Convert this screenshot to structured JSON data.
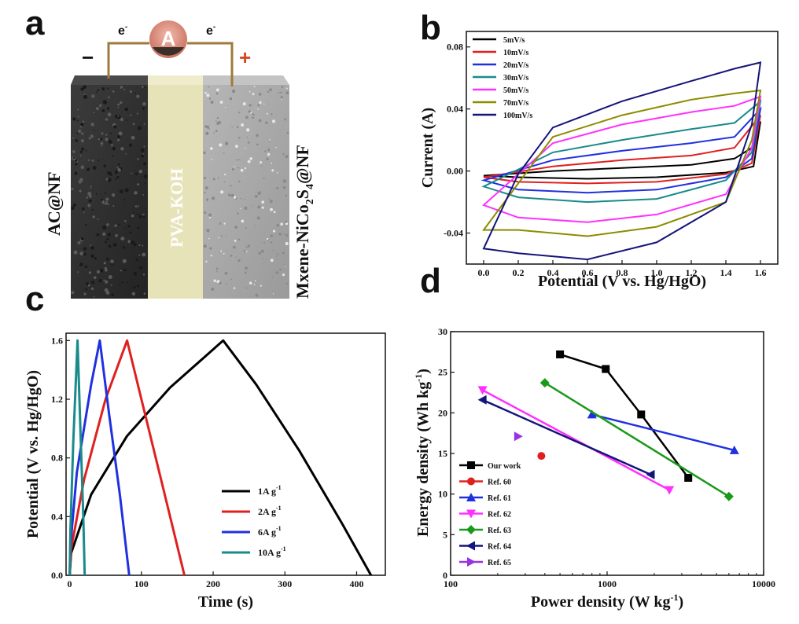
{
  "figure": {
    "panel_labels": [
      "a",
      "b",
      "c",
      "d"
    ]
  },
  "schematic": {
    "ammeter_symbol": "A",
    "electron_left": "e",
    "electron_right": "e",
    "minus_sign": "−",
    "plus_sign": "+",
    "left_electrode": "AC@NF",
    "middle_layer": "PVA-KOH",
    "right_electrode": "Mxene-NiCo",
    "right_electrode_sub": [
      "2",
      "4"
    ],
    "right_electrode_S": "S",
    "right_electrode_tail": "@NF",
    "colors": {
      "left": "#2e2e2e",
      "middle": "#e7e3b9",
      "right": "#a8a8a8",
      "wire": "#a07a3c",
      "meter": "#d98a7c"
    }
  },
  "chart_data": [
    {
      "id": "b",
      "type": "line",
      "xlabel": "Potential (V vs. Hg/HgO)",
      "ylabel": "Current (A)",
      "xlim": [
        -0.1,
        1.7
      ],
      "ylim": [
        -0.06,
        0.09
      ],
      "xticks": [
        "0.0",
        "0.2",
        "0.4",
        "0.6",
        "0.8",
        "1.0",
        "1.2",
        "1.4",
        "1.6"
      ],
      "yticks": [
        "-0.04",
        "0.00",
        "0.04",
        "0.08"
      ],
      "legend_position": "top-left",
      "series": [
        {
          "name": "5mV/s",
          "color": "#000000",
          "upper": [
            [
              0,
              -0.003
            ],
            [
              0.4,
              0.0
            ],
            [
              0.8,
              0.002
            ],
            [
              1.2,
              0.004
            ],
            [
              1.45,
              0.008
            ],
            [
              1.55,
              0.015
            ],
            [
              1.6,
              0.032
            ]
          ],
          "lower": [
            [
              1.6,
              0.032
            ],
            [
              1.56,
              0.003
            ],
            [
              1.4,
              -0.001
            ],
            [
              1.0,
              -0.004
            ],
            [
              0.6,
              -0.005
            ],
            [
              0.2,
              -0.004
            ],
            [
              0,
              -0.003
            ]
          ]
        },
        {
          "name": "10mV/s",
          "color": "#e02020",
          "upper": [
            [
              0,
              -0.004
            ],
            [
              0.4,
              0.003
            ],
            [
              0.8,
              0.007
            ],
            [
              1.2,
              0.01
            ],
            [
              1.45,
              0.015
            ],
            [
              1.6,
              0.036
            ]
          ],
          "lower": [
            [
              1.6,
              0.036
            ],
            [
              1.55,
              0.005
            ],
            [
              1.4,
              -0.002
            ],
            [
              1.0,
              -0.007
            ],
            [
              0.6,
              -0.008
            ],
            [
              0.2,
              -0.007
            ],
            [
              0,
              -0.004
            ]
          ]
        },
        {
          "name": "20mV/s",
          "color": "#2030e0",
          "upper": [
            [
              0,
              -0.006
            ],
            [
              0.4,
              0.007
            ],
            [
              0.8,
              0.013
            ],
            [
              1.2,
              0.018
            ],
            [
              1.45,
              0.022
            ],
            [
              1.6,
              0.04
            ]
          ],
          "lower": [
            [
              1.6,
              0.04
            ],
            [
              1.55,
              0.008
            ],
            [
              1.4,
              -0.004
            ],
            [
              1.0,
              -0.012
            ],
            [
              0.6,
              -0.014
            ],
            [
              0.2,
              -0.012
            ],
            [
              0,
              -0.006
            ]
          ]
        },
        {
          "name": "30mV/s",
          "color": "#1a8a8a",
          "upper": [
            [
              0,
              -0.01
            ],
            [
              0.4,
              0.012
            ],
            [
              0.8,
              0.02
            ],
            [
              1.2,
              0.027
            ],
            [
              1.45,
              0.031
            ],
            [
              1.6,
              0.045
            ]
          ],
          "lower": [
            [
              1.6,
              0.045
            ],
            [
              1.55,
              0.012
            ],
            [
              1.4,
              -0.006
            ],
            [
              1.0,
              -0.018
            ],
            [
              0.6,
              -0.02
            ],
            [
              0.2,
              -0.017
            ],
            [
              0,
              -0.01
            ]
          ]
        },
        {
          "name": "50mV/s",
          "color": "#ff30ff",
          "upper": [
            [
              0,
              -0.022
            ],
            [
              0.4,
              0.018
            ],
            [
              0.8,
              0.03
            ],
            [
              1.2,
              0.038
            ],
            [
              1.45,
              0.042
            ],
            [
              1.6,
              0.048
            ]
          ],
          "lower": [
            [
              1.6,
              0.048
            ],
            [
              1.55,
              0.015
            ],
            [
              1.4,
              -0.015
            ],
            [
              1.0,
              -0.028
            ],
            [
              0.6,
              -0.033
            ],
            [
              0.2,
              -0.03
            ],
            [
              0,
              -0.022
            ]
          ]
        },
        {
          "name": "70mV/s",
          "color": "#8c8c00",
          "upper": [
            [
              0,
              -0.038
            ],
            [
              0.4,
              0.022
            ],
            [
              0.8,
              0.036
            ],
            [
              1.2,
              0.046
            ],
            [
              1.45,
              0.05
            ],
            [
              1.6,
              0.052
            ]
          ],
          "lower": [
            [
              1.6,
              0.052
            ],
            [
              1.55,
              0.02
            ],
            [
              1.4,
              -0.02
            ],
            [
              1.0,
              -0.036
            ],
            [
              0.6,
              -0.042
            ],
            [
              0.2,
              -0.038
            ],
            [
              0,
              -0.038
            ]
          ]
        },
        {
          "name": "100mV/s",
          "color": "#14147a",
          "upper": [
            [
              0,
              -0.05
            ],
            [
              0.2,
              -0.002
            ],
            [
              0.4,
              0.028
            ],
            [
              0.8,
              0.045
            ],
            [
              1.2,
              0.058
            ],
            [
              1.45,
              0.066
            ],
            [
              1.6,
              0.07
            ]
          ],
          "lower": [
            [
              1.6,
              0.07
            ],
            [
              1.55,
              0.03
            ],
            [
              1.4,
              -0.02
            ],
            [
              1.0,
              -0.046
            ],
            [
              0.6,
              -0.057
            ],
            [
              0.2,
              -0.053
            ],
            [
              0,
              -0.05
            ]
          ]
        }
      ]
    },
    {
      "id": "c",
      "type": "line",
      "xlabel": "Time (s)",
      "ylabel": "Potential (V vs. Hg/HgO)",
      "xlim": [
        -5,
        440
      ],
      "ylim": [
        0,
        1.65
      ],
      "xticks": [
        "0",
        "100",
        "200",
        "300",
        "400"
      ],
      "yticks": [
        "0.0",
        "0.4",
        "0.8",
        "1.2",
        "1.6"
      ],
      "legend_position": "lower-right",
      "series": [
        {
          "name": "1A g",
          "color": "#000000",
          "points": [
            [
              0,
              0
            ],
            [
              2,
              0.15
            ],
            [
              30,
              0.55
            ],
            [
              80,
              0.95
            ],
            [
              140,
              1.28
            ],
            [
              214,
              1.6
            ],
            [
              260,
              1.3
            ],
            [
              320,
              0.85
            ],
            [
              380,
              0.35
            ],
            [
              420,
              0
            ]
          ]
        },
        {
          "name": "2A g",
          "color": "#e02020",
          "points": [
            [
              0,
              0
            ],
            [
              2,
              0.18
            ],
            [
              20,
              0.65
            ],
            [
              50,
              1.2
            ],
            [
              80,
              1.6
            ],
            [
              100,
              1.2
            ],
            [
              130,
              0.6
            ],
            [
              160,
              0
            ]
          ]
        },
        {
          "name": "6A g",
          "color": "#2030e0",
          "points": [
            [
              0,
              0
            ],
            [
              1,
              0.2
            ],
            [
              10,
              0.7
            ],
            [
              30,
              1.3
            ],
            [
              42,
              1.6
            ],
            [
              55,
              1.1
            ],
            [
              70,
              0.55
            ],
            [
              83,
              0
            ]
          ]
        },
        {
          "name": "10A g",
          "color": "#1a8a8a",
          "points": [
            [
              0,
              0
            ],
            [
              1,
              0.3
            ],
            [
              5,
              0.9
            ],
            [
              11,
              1.6
            ],
            [
              15,
              1.0
            ],
            [
              19,
              0.4
            ],
            [
              21,
              0
            ]
          ]
        }
      ],
      "legend_superscript": "-1"
    },
    {
      "id": "d",
      "type": "line",
      "xlabel": "Power density (W kg",
      "xlabel_sup": "-1",
      "xlabel_tail": ")",
      "ylabel": "Energy density (Wh kg",
      "ylabel_sup": "-1",
      "ylabel_tail": ")",
      "xscale": "log",
      "xlim": [
        100,
        10000
      ],
      "ylim": [
        0,
        30
      ],
      "xticks": [
        "100",
        "1000",
        "10000"
      ],
      "yticks": [
        "0",
        "5",
        "10",
        "15",
        "20",
        "25",
        "30"
      ],
      "legend_position": "lower-left",
      "series": [
        {
          "name": "Our work",
          "color": "#000000",
          "marker": "square",
          "points": [
            [
              500,
              27.2
            ],
            [
              980,
              25.4
            ],
            [
              1650,
              19.8
            ],
            [
              3300,
              12.0
            ]
          ]
        },
        {
          "name": "Ref. 60",
          "color": "#e02020",
          "marker": "circle",
          "points": [
            [
              380,
              14.7
            ]
          ]
        },
        {
          "name": "Ref. 61",
          "color": "#2030e0",
          "marker": "triangle-up",
          "points": [
            [
              800,
              19.8
            ],
            [
              6500,
              15.4
            ]
          ]
        },
        {
          "name": "Ref. 62",
          "color": "#ff30ff",
          "marker": "triangle-down",
          "points": [
            [
              160,
              22.8
            ],
            [
              2500,
              10.5
            ]
          ]
        },
        {
          "name": "Ref. 63",
          "color": "#1a9a1a",
          "marker": "diamond",
          "points": [
            [
              400,
              23.7
            ],
            [
              6000,
              9.7
            ]
          ]
        },
        {
          "name": "Ref. 64",
          "color": "#14147a",
          "marker": "triangle-left",
          "points": [
            [
              160,
              21.6
            ],
            [
              1900,
              12.4
            ]
          ]
        },
        {
          "name": "Ref. 65",
          "color": "#9933dd",
          "marker": "triangle-right",
          "points": [
            [
              270,
              17.1
            ]
          ]
        }
      ]
    }
  ]
}
